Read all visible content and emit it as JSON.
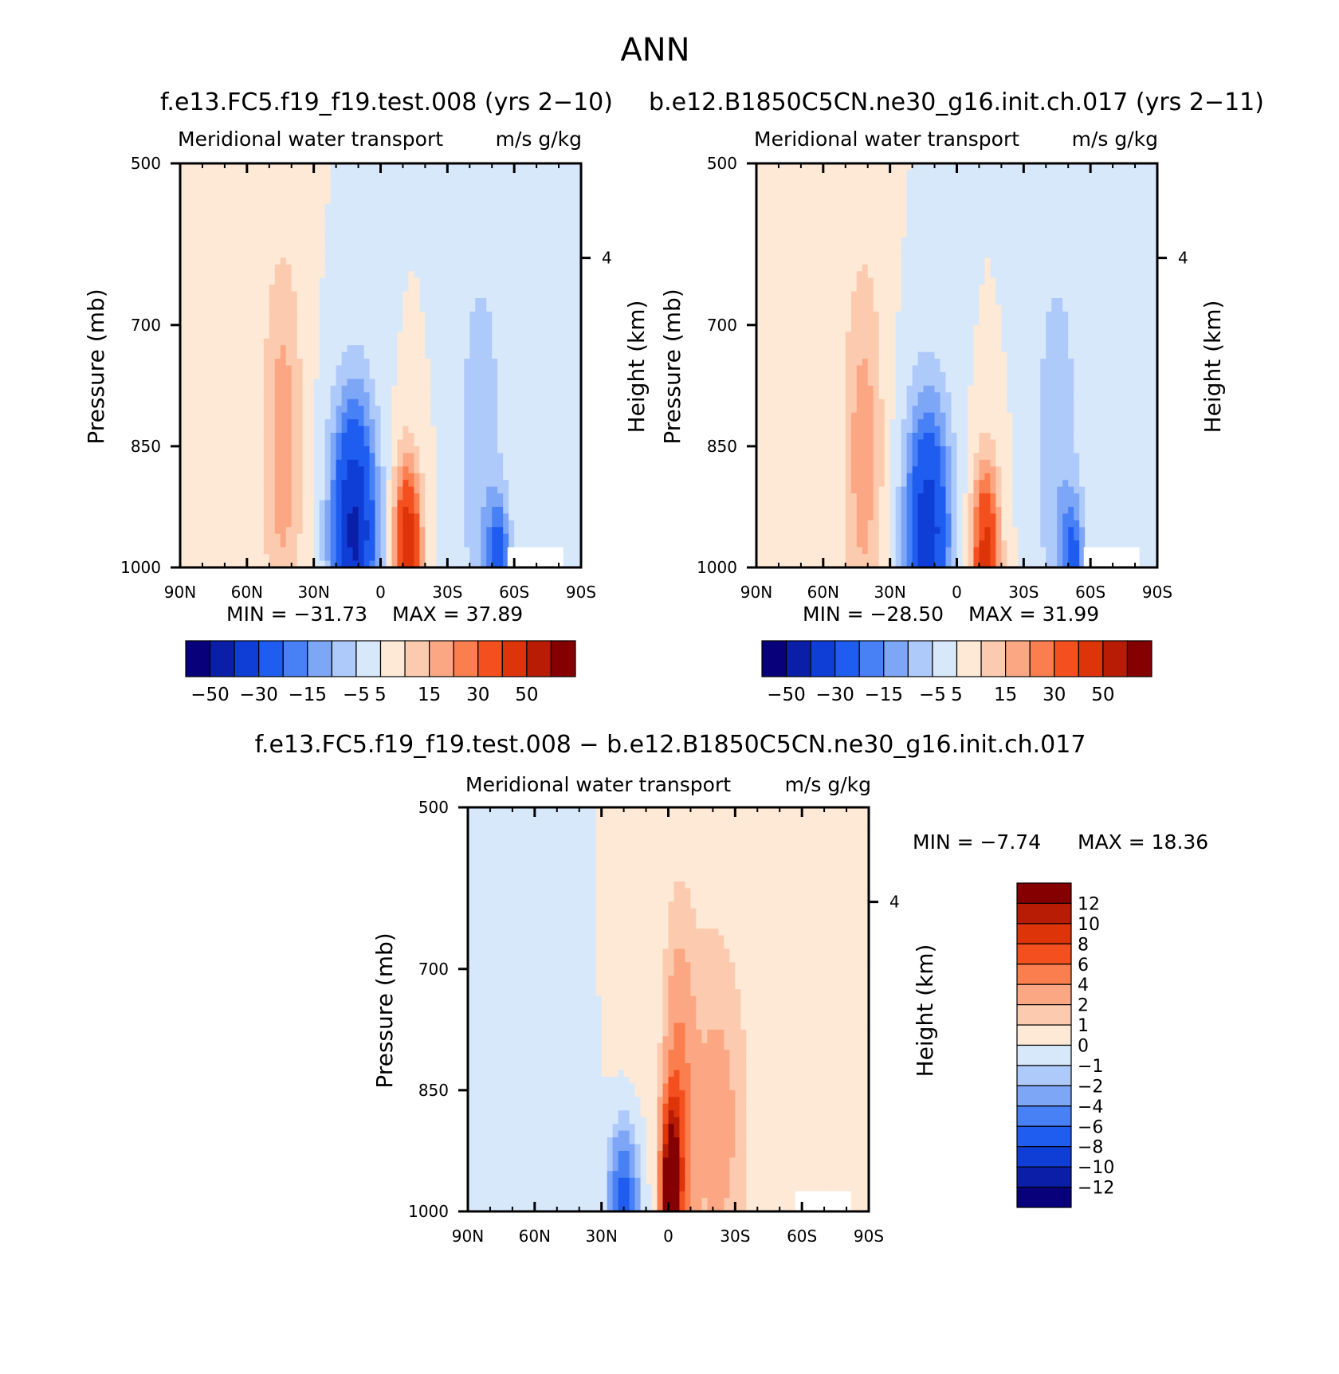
{
  "figure": {
    "title": "ANN",
    "diff_title": "f.e13.FC5.f19_f19.test.008 − b.e12.B1850C5CN.ne30_g16.init.ch.017"
  },
  "colors": {
    "full_scale": [
      "#08007a",
      "#0a1ea8",
      "#0f3ed6",
      "#1f5cf0",
      "#4880f5",
      "#7ea6f7",
      "#aecafa",
      "#d8e8fb",
      "#fde9d6",
      "#fccbaf",
      "#fca783",
      "#fb7e4e",
      "#f4501f",
      "#dd3409",
      "#b91c04",
      "#850000"
    ],
    "diff_scale": [
      "#08007a",
      "#0a1ea8",
      "#0f3ed6",
      "#1f5cf0",
      "#4880f5",
      "#7ea6f7",
      "#aecafa",
      "#d8e8fb",
      "#fde9d6",
      "#fccbaf",
      "#fca783",
      "#fb7e4e",
      "#f4501f",
      "#dd3409",
      "#b91c04",
      "#850000"
    ]
  },
  "chart_data": [
    {
      "type": "heatmap",
      "panel": "a",
      "title": "f.e13.FC5.f19_f19.test.008 (yrs 2−10)",
      "left_label": "Meridional water transport",
      "right_label": "m/s g/kg",
      "xlabel": "",
      "ylabel": "Pressure (mb)",
      "y2label": "Height (km)",
      "x_ticks": [
        "90N",
        "60N",
        "30N",
        "0",
        "30S",
        "60S",
        "90S"
      ],
      "y_ticks": [
        "500",
        "700",
        "850",
        "1000"
      ],
      "y2_ticks": [
        "4"
      ],
      "min_label": "MIN = −31.73",
      "max_label": "MAX =  37.89",
      "min": -31.73,
      "max": 37.89,
      "colorbar_labels": [
        "−50",
        "−30",
        "−15",
        "−5",
        "5",
        "15",
        "30",
        "50"
      ],
      "levels": [
        -50,
        -40,
        -30,
        -20,
        -15,
        -10,
        -5,
        0,
        5,
        10,
        15,
        20,
        30,
        40,
        50
      ],
      "fields": [
        {
          "lat": -12,
          "p": 985,
          "amp": 40,
          "sx": 6,
          "sp": 110
        },
        {
          "lat": 12,
          "p": 955,
          "amp": -42,
          "sx": 10,
          "sp": 160
        },
        {
          "lat": 44,
          "p": 850,
          "amp": 13,
          "sx": 9,
          "sp": 240
        },
        {
          "lat": -45,
          "p": 860,
          "amp": -9,
          "sx": 10,
          "sp": 260
        },
        {
          "lat": -53,
          "p": 985,
          "amp": -22,
          "sx": 5,
          "sp": 70
        }
      ]
    },
    {
      "type": "heatmap",
      "panel": "b",
      "title": "b.e12.B1850C5CN.ne30_g16.init.ch.017 (yrs 2−11)",
      "left_label": "Meridional water transport",
      "right_label": "m/s g/kg",
      "xlabel": "",
      "ylabel": "Pressure (mb)",
      "y2label": "Height (km)",
      "x_ticks": [
        "90N",
        "60N",
        "30N",
        "0",
        "30S",
        "60S",
        "90S"
      ],
      "y_ticks": [
        "500",
        "700",
        "850",
        "1000"
      ],
      "y2_ticks": [
        "4"
      ],
      "min_label": "MIN = −28.50",
      "max_label": "MAX =  31.99",
      "min": -28.5,
      "max": 31.99,
      "colorbar_labels": [
        "−50",
        "−30",
        "−15",
        "−5",
        "5",
        "15",
        "30",
        "50"
      ],
      "levels": [
        -50,
        -40,
        -30,
        -20,
        -15,
        -10,
        -5,
        0,
        5,
        10,
        15,
        20,
        30,
        40,
        50
      ],
      "fields": [
        {
          "lat": -13,
          "p": 985,
          "amp": 34,
          "sx": 6,
          "sp": 110
        },
        {
          "lat": 13,
          "p": 955,
          "amp": -36,
          "sx": 10,
          "sp": 160
        },
        {
          "lat": 42,
          "p": 860,
          "amp": 13,
          "sx": 9,
          "sp": 240
        },
        {
          "lat": -45,
          "p": 860,
          "amp": -9,
          "sx": 10,
          "sp": 260
        },
        {
          "lat": -52,
          "p": 985,
          "amp": -20,
          "sx": 5,
          "sp": 70
        }
      ]
    },
    {
      "type": "heatmap",
      "panel": "diff",
      "title": "",
      "left_label": "Meridional water transport",
      "right_label": "m/s g/kg",
      "xlabel": "",
      "ylabel": "Pressure (mb)",
      "y2label": "Height (km)",
      "x_ticks": [
        "90N",
        "60N",
        "30N",
        "0",
        "30S",
        "60S",
        "90S"
      ],
      "y_ticks": [
        "500",
        "700",
        "850",
        "1000"
      ],
      "y2_ticks": [
        "4"
      ],
      "min_label": "MIN =   −7.74",
      "max_label": "MAX =   18.36",
      "min": -7.74,
      "max": 18.36,
      "colorbar_labels": [
        "12",
        "10",
        "8",
        "6",
        "4",
        "2",
        "1",
        "0",
        "−1",
        "−2",
        "−4",
        "−6",
        "−8",
        "−10",
        "−12"
      ],
      "levels": [
        -12,
        -10,
        -8,
        -6,
        -4,
        -2,
        -1,
        0,
        1,
        2,
        4,
        6,
        8,
        10,
        12
      ],
      "fields": [
        {
          "lat": -1,
          "p": 990,
          "amp": 18,
          "sx": 4,
          "sp": 110
        },
        {
          "lat": -5,
          "p": 900,
          "amp": 5,
          "sx": 6,
          "sp": 200
        },
        {
          "lat": -22,
          "p": 900,
          "amp": 2.5,
          "sx": 14,
          "sp": 220
        },
        {
          "lat": 20,
          "p": 985,
          "amp": -7,
          "sx": 6,
          "sp": 80
        },
        {
          "lat": 55,
          "p": 700,
          "amp": -0.8,
          "sx": 18,
          "sp": 400
        },
        {
          "lat": -70,
          "p": 650,
          "amp": 0.6,
          "sx": 20,
          "sp": 400
        },
        {
          "lat": 0,
          "p": 600,
          "amp": 0.5,
          "sx": 30,
          "sp": 300
        }
      ]
    }
  ]
}
